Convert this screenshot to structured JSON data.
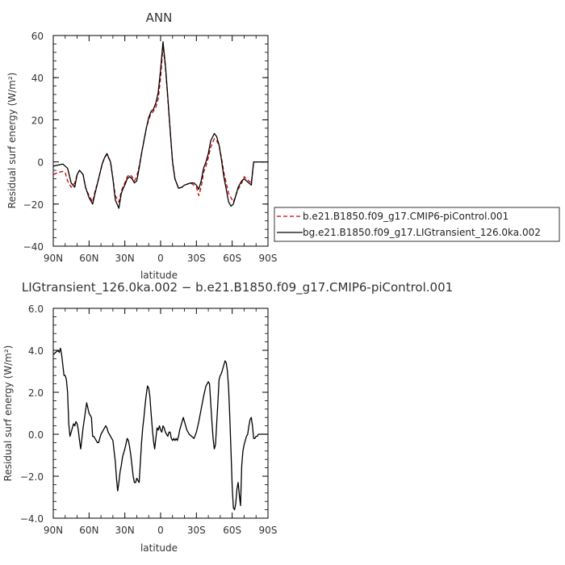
{
  "chart_data": [
    {
      "type": "line",
      "title": "ANN",
      "xlabel": "latitude",
      "ylabel": "Residual surf energy (W/m²)",
      "xlim": [
        90,
        -90
      ],
      "ylim": [
        -40,
        60
      ],
      "x_ticks": [
        90,
        60,
        30,
        0,
        -30,
        -60,
        -90
      ],
      "x_tick_labels": [
        "90N",
        "60N",
        "30N",
        "0",
        "30S",
        "60S",
        "90S"
      ],
      "y_ticks": [
        -40,
        -20,
        0,
        20,
        40,
        60
      ],
      "y_tick_labels": [
        "−40",
        "−20",
        "0",
        "20",
        "40",
        "60"
      ],
      "legend_position": "right",
      "series": [
        {
          "name": "b.e21.B1850.f09_g17.CMIP6-piControl.001",
          "color": "#cc0000",
          "dash": "dashed",
          "x": [
            90,
            86,
            82,
            80,
            78,
            75,
            72,
            70,
            68,
            65,
            63,
            60,
            57,
            55,
            52,
            49,
            47,
            45,
            42,
            40,
            38,
            35,
            33,
            31,
            30,
            28,
            26,
            24,
            22,
            20,
            18,
            16,
            14,
            12,
            10,
            8,
            6,
            4,
            2,
            0,
            -2,
            -4,
            -6,
            -8,
            -10,
            -12,
            -15,
            -18,
            -20,
            -25,
            -28,
            -30,
            -32,
            -34,
            -36,
            -38,
            -40,
            -42,
            -45,
            -47,
            -49,
            -51,
            -53,
            -55,
            -57,
            -59,
            -61,
            -63,
            -65,
            -68,
            -70,
            -72,
            -74,
            -76,
            -78,
            -80,
            -82,
            -84,
            -86,
            -88,
            -90
          ],
          "values": [
            -6,
            -5,
            -4.5,
            -5,
            -9,
            -12,
            -10,
            -6,
            -4,
            -6,
            -12,
            -16,
            -19,
            -14,
            -8,
            -1,
            2,
            3.5,
            0,
            -8,
            -16,
            -19,
            -14,
            -11,
            -10,
            -7,
            -6,
            -7,
            -9,
            -7,
            -2,
            4,
            10,
            16,
            20,
            23,
            24,
            26,
            30,
            40,
            55,
            45,
            30,
            15,
            0,
            -8,
            -12.5,
            -12,
            -11,
            -10,
            -11,
            -12,
            -16,
            -12,
            -5,
            -2,
            2,
            7,
            11,
            10,
            8,
            2,
            -5,
            -10,
            -15,
            -17,
            -19,
            -16,
            -13,
            -10,
            -7,
            -8,
            -9,
            -10,
            0,
            0,
            0,
            0,
            0,
            0,
            0
          ]
        },
        {
          "name": "bg.e21.B1850.f09_g17.LIGtransient_126.0ka.002",
          "color": "#000000",
          "dash": "solid",
          "x": [
            90,
            86,
            82,
            80,
            78,
            75,
            72,
            70,
            68,
            65,
            63,
            60,
            57,
            55,
            52,
            49,
            47,
            45,
            42,
            40,
            38,
            35,
            33,
            31,
            30,
            28,
            26,
            24,
            22,
            20,
            18,
            16,
            14,
            12,
            10,
            8,
            6,
            4,
            2,
            0,
            -2,
            -4,
            -6,
            -8,
            -10,
            -12,
            -15,
            -18,
            -20,
            -25,
            -28,
            -30,
            -32,
            -34,
            -36,
            -38,
            -40,
            -42,
            -45,
            -47,
            -49,
            -51,
            -53,
            -55,
            -57,
            -59,
            -61,
            -63,
            -65,
            -68,
            -70,
            -72,
            -74,
            -76,
            -78,
            -80,
            -82,
            -84,
            -86,
            -88,
            -90
          ],
          "values": [
            -2,
            -1.5,
            -1,
            -2,
            -3,
            -10,
            -12,
            -6,
            -4,
            -6,
            -12,
            -17,
            -20,
            -15,
            -8,
            -1,
            2,
            4,
            0,
            -8,
            -18,
            -22,
            -15,
            -12,
            -11,
            -8,
            -7,
            -8,
            -10,
            -9,
            -3,
            4,
            10,
            16,
            21,
            24,
            25,
            28,
            33,
            44,
            57,
            46,
            31,
            15,
            0,
            -8,
            -12.5,
            -12,
            -11,
            -10,
            -10,
            -11,
            -13,
            -9,
            -3,
            0,
            4,
            10,
            13.5,
            12,
            8,
            1,
            -7,
            -13,
            -19,
            -21,
            -20,
            -16,
            -12,
            -9,
            -8,
            -9,
            -10,
            -11,
            0,
            0,
            0,
            0,
            0,
            0,
            0
          ]
        }
      ]
    },
    {
      "type": "line",
      "title": "LIGtransient_126.0ka.002 − b.e21.B1850.f09_g17.CMIP6-piControl.001",
      "xlabel": "latitude",
      "ylabel": "Residual surf energy (W/m²)",
      "xlim": [
        90,
        -90
      ],
      "ylim": [
        -4,
        6
      ],
      "x_ticks": [
        90,
        60,
        30,
        0,
        -30,
        -60,
        -90
      ],
      "x_tick_labels": [
        "90N",
        "60N",
        "30N",
        "0",
        "30S",
        "60S",
        "90S"
      ],
      "y_ticks": [
        -4,
        -2,
        0,
        2,
        4,
        6
      ],
      "y_tick_labels": [
        "−4.0",
        "−2.0",
        "0.0",
        "2.0",
        "4.0",
        "6.0"
      ],
      "series": [
        {
          "color": "#000000",
          "x": [
            90,
            88,
            86,
            85,
            84,
            83,
            82,
            81,
            80,
            79,
            78,
            77,
            76,
            75,
            74,
            73,
            72,
            71,
            70,
            69,
            68,
            67,
            66,
            65,
            64,
            63,
            62,
            60,
            58,
            57,
            56,
            55,
            54,
            53,
            52,
            51,
            50,
            48,
            46,
            45,
            44,
            43,
            42,
            40,
            38,
            37,
            36,
            35,
            34,
            33,
            32,
            30,
            28,
            27,
            26,
            25,
            24,
            23,
            22,
            21,
            20,
            18,
            16,
            15,
            14,
            13,
            12,
            11,
            10,
            9,
            8,
            7,
            6,
            5,
            4,
            3,
            2,
            1,
            0,
            -1,
            -2,
            -3,
            -4,
            -5,
            -6,
            -7,
            -8,
            -9,
            -10,
            -11,
            -12,
            -13,
            -14,
            -15,
            -16,
            -17,
            -18,
            -19,
            -20,
            -21,
            -22,
            -23,
            -24,
            -26,
            -28,
            -30,
            -32,
            -34,
            -36,
            -38,
            -40,
            -41,
            -42,
            -43,
            -44,
            -45,
            -46,
            -47,
            -48,
            -49,
            -50,
            -51,
            -52,
            -53,
            -54,
            -55,
            -56,
            -57,
            -58,
            -59,
            -60,
            -61,
            -62,
            -63,
            -64,
            -65,
            -66,
            -67,
            -68,
            -69,
            -70,
            -71,
            -72,
            -73,
            -74,
            -75,
            -76,
            -77,
            -78,
            -79,
            -80,
            -81,
            -82,
            -84,
            -86,
            -88,
            -90
          ],
          "values": [
            3.8,
            3.9,
            4.0,
            3.9,
            4.1,
            3.8,
            3.3,
            2.8,
            2.8,
            2.6,
            2.0,
            0.5,
            -0.1,
            0.1,
            0.3,
            0.5,
            0.4,
            0.6,
            0.5,
            0.2,
            -0.3,
            -0.7,
            -0.2,
            0.3,
            0.7,
            1.1,
            1.5,
            1.0,
            0.8,
            -0.1,
            -0.1,
            -0.2,
            -0.3,
            -0.4,
            -0.4,
            -0.2,
            0.0,
            0.2,
            0.4,
            0.3,
            0.1,
            0.0,
            -0.1,
            -0.3,
            -1.3,
            -2.1,
            -2.7,
            -2.3,
            -1.8,
            -1.5,
            -1.1,
            -0.7,
            -0.2,
            -0.3,
            -0.6,
            -1.0,
            -1.5,
            -2.0,
            -2.3,
            -2.3,
            -2.1,
            -2.3,
            -0.4,
            0.3,
            0.8,
            1.4,
            1.9,
            2.3,
            2.2,
            1.8,
            1.0,
            0.3,
            -0.3,
            -0.7,
            -0.2,
            0.3,
            0.2,
            0.4,
            0.2,
            0.1,
            0.4,
            0.3,
            0.1,
            0.0,
            -0.1,
            0.1,
            0.1,
            -0.2,
            -0.3,
            -0.2,
            -0.3,
            -0.2,
            -0.3,
            -0.1,
            0.2,
            0.4,
            0.6,
            0.8,
            0.6,
            0.4,
            0.2,
            0.1,
            0.0,
            -0.1,
            -0.2,
            0.1,
            0.6,
            1.2,
            1.8,
            2.3,
            2.5,
            2.4,
            1.5,
            0.6,
            -0.2,
            -0.7,
            -0.5,
            0.5,
            1.5,
            2.6,
            2.8,
            2.9,
            3.1,
            3.3,
            3.5,
            3.4,
            3.0,
            2.2,
            0.8,
            -0.8,
            -2.5,
            -3.5,
            -3.6,
            -3.3,
            -2.6,
            -2.3,
            -2.9,
            -3.4,
            -1.5,
            -0.8,
            -0.5,
            -0.3,
            -0.1,
            0.0,
            0.4,
            0.7,
            0.8,
            0.4,
            -0.2,
            -0.2,
            -0.1,
            -0.1,
            0.0,
            0.0,
            0.0,
            0.0,
            0.0
          ]
        }
      ]
    }
  ]
}
